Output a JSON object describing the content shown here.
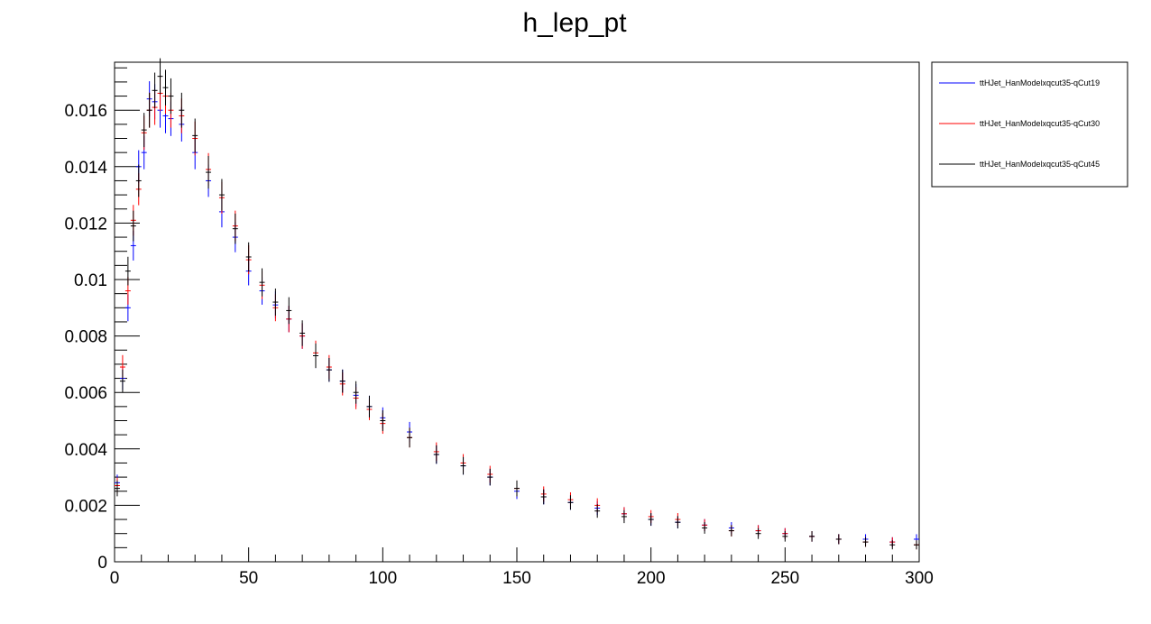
{
  "chart_data": {
    "type": "scatter",
    "title": "h_lep_pt",
    "xlabel": "",
    "ylabel": "",
    "xlim": [
      0,
      300
    ],
    "ylim": [
      0,
      0.0177
    ],
    "xticks": [
      {
        "value": 0,
        "label": "0"
      },
      {
        "value": 50,
        "label": "50"
      },
      {
        "value": 100,
        "label": "100"
      },
      {
        "value": 150,
        "label": "150"
      },
      {
        "value": 200,
        "label": "200"
      },
      {
        "value": 250,
        "label": "250"
      },
      {
        "value": 300,
        "label": "300"
      }
    ],
    "yticks": [
      {
        "value": 0,
        "label": "0"
      },
      {
        "value": 0.002,
        "label": "0.002"
      },
      {
        "value": 0.004,
        "label": "0.004"
      },
      {
        "value": 0.006,
        "label": "0.006"
      },
      {
        "value": 0.008,
        "label": "0.008"
      },
      {
        "value": 0.01,
        "label": "0.01"
      },
      {
        "value": 0.012,
        "label": "0.012"
      },
      {
        "value": 0.014,
        "label": "0.014"
      },
      {
        "value": 0.016,
        "label": "0.016"
      }
    ],
    "grid": false,
    "legend_position": "right",
    "bin_width": 2,
    "series": [
      {
        "name": "ttHJet_HanModelxqcut35-qCut19",
        "color": "#0000ff",
        "x": [
          1,
          3,
          5,
          7,
          9,
          11,
          13,
          15,
          17,
          19,
          21,
          25,
          30,
          35,
          40,
          45,
          50,
          55,
          60,
          65,
          70,
          75,
          80,
          85,
          90,
          95,
          100,
          110,
          120,
          130,
          140,
          150,
          160,
          170,
          180,
          190,
          200,
          210,
          220,
          230,
          240,
          250,
          260,
          270,
          280,
          290,
          299
        ],
        "y": [
          0.0028,
          0.0065,
          0.009,
          0.0112,
          0.014,
          0.0145,
          0.0164,
          0.0163,
          0.016,
          0.0158,
          0.0157,
          0.0155,
          0.0145,
          0.0135,
          0.0124,
          0.0115,
          0.0103,
          0.0096,
          0.0091,
          0.0086,
          0.008,
          0.0073,
          0.0068,
          0.0064,
          0.0059,
          0.0055,
          0.0051,
          0.0046,
          0.0038,
          0.0034,
          0.003,
          0.0025,
          0.0023,
          0.0021,
          0.0019,
          0.0017,
          0.0015,
          0.0014,
          0.0013,
          0.0012,
          0.0011,
          0.001,
          0.0009,
          0.0008,
          0.0008,
          0.0007,
          0.0008
        ]
      },
      {
        "name": "ttHJet_HanModelxqcut35-qCut30",
        "color": "#ff0000",
        "x": [
          1,
          3,
          5,
          7,
          9,
          11,
          13,
          15,
          17,
          19,
          21,
          25,
          30,
          35,
          40,
          45,
          50,
          55,
          60,
          65,
          70,
          75,
          80,
          85,
          90,
          95,
          100,
          110,
          120,
          130,
          140,
          150,
          160,
          170,
          180,
          190,
          200,
          210,
          220,
          230,
          240,
          250,
          260,
          270,
          280,
          290,
          299
        ],
        "y": [
          0.0027,
          0.0069,
          0.0096,
          0.0121,
          0.0132,
          0.0152,
          0.016,
          0.0161,
          0.0166,
          0.0165,
          0.016,
          0.0158,
          0.015,
          0.0139,
          0.0129,
          0.0119,
          0.0107,
          0.0098,
          0.009,
          0.0086,
          0.008,
          0.0074,
          0.0069,
          0.0063,
          0.0058,
          0.0054,
          0.0049,
          0.0044,
          0.0039,
          0.0035,
          0.0031,
          0.0026,
          0.0024,
          0.0022,
          0.002,
          0.0017,
          0.0016,
          0.0015,
          0.0013,
          0.0011,
          0.0011,
          0.001,
          0.0009,
          0.0008,
          0.0007,
          0.0007,
          0.0006
        ]
      },
      {
        "name": "ttHJet_HanModelxqcut35-qCut45",
        "color": "#000000",
        "x": [
          1,
          3,
          5,
          7,
          9,
          11,
          13,
          15,
          17,
          19,
          21,
          25,
          30,
          35,
          40,
          45,
          50,
          55,
          60,
          65,
          70,
          75,
          80,
          85,
          90,
          95,
          100,
          110,
          120,
          130,
          140,
          150,
          160,
          170,
          180,
          190,
          200,
          210,
          220,
          230,
          240,
          250,
          260,
          270,
          280,
          290,
          299
        ],
        "y": [
          0.0026,
          0.0064,
          0.0103,
          0.0119,
          0.0135,
          0.0153,
          0.016,
          0.0167,
          0.0172,
          0.0168,
          0.0165,
          0.016,
          0.0151,
          0.0138,
          0.013,
          0.0118,
          0.0108,
          0.0099,
          0.0092,
          0.0089,
          0.0081,
          0.0073,
          0.0068,
          0.0064,
          0.006,
          0.0055,
          0.005,
          0.0044,
          0.0038,
          0.0034,
          0.003,
          0.0026,
          0.0023,
          0.0021,
          0.0018,
          0.0016,
          0.0015,
          0.0014,
          0.0012,
          0.0011,
          0.001,
          0.0009,
          0.0009,
          0.0008,
          0.0007,
          0.0006,
          0.0006
        ]
      }
    ]
  }
}
